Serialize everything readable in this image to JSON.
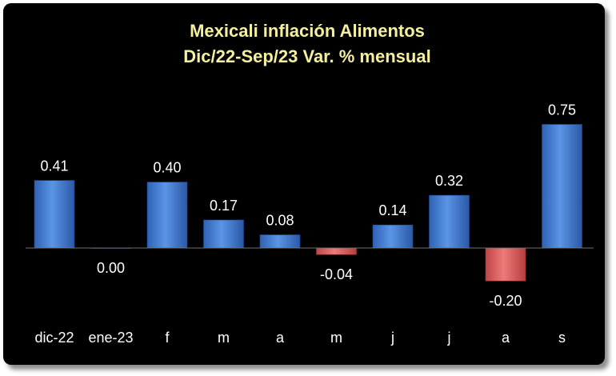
{
  "chart_data": {
    "type": "bar",
    "title_line1": "Mexicali inflación Alimentos",
    "title_line2": "Dic/22-Sep/23 Var. % mensual",
    "categories": [
      "dic-22",
      "ene-23",
      "f",
      "m",
      "a",
      "m",
      "j",
      "j",
      "a",
      "s"
    ],
    "values": [
      0.41,
      0.0,
      0.4,
      0.17,
      0.08,
      -0.04,
      0.14,
      0.32,
      -0.2,
      0.75
    ],
    "value_labels": [
      "0.41",
      "0.00",
      "0.40",
      "0.17",
      "0.08",
      "-0.04",
      "0.14",
      "0.32",
      "-0.20",
      "0.75"
    ],
    "xlabel": "",
    "ylabel": "",
    "ylim": [
      -0.25,
      0.85
    ],
    "grid": false,
    "legend": "none",
    "colors": {
      "background": "#000000",
      "title": "#f5f0a0",
      "positive_bar": "#4a86d8",
      "negative_bar": "#e06060",
      "text": "#ffffff",
      "axis": "#6f6f6f"
    }
  }
}
